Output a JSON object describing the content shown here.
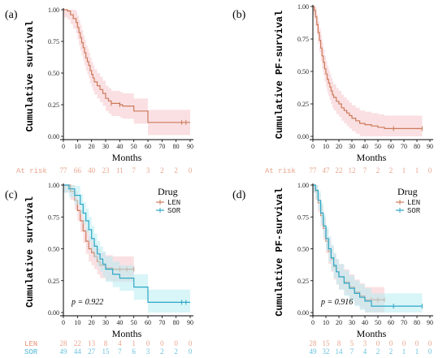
{
  "colors": {
    "len": "#cc7a5a",
    "sor": "#2ca7c6",
    "len_band": "#f6c6cc",
    "sor_band": "#b8ecf3",
    "risk_len": "#e8a58d",
    "risk_sor": "#6cc3dd"
  },
  "chart_data": [
    {
      "id": "a",
      "type": "line",
      "panel_label": "(a)",
      "xlabel": "Months",
      "ylabel": "Cumulative survival",
      "xlim": [
        0,
        90
      ],
      "ylim": [
        0,
        1
      ],
      "xticks": [
        "0",
        "10",
        "20",
        "30",
        "40",
        "50",
        "60",
        "70",
        "80",
        "90"
      ],
      "yticks": [
        "0.00",
        "0.25",
        "0.50",
        "0.75",
        "1.00"
      ],
      "series": [
        {
          "key": "len",
          "x": [
            0,
            3,
            5,
            7,
            9,
            10,
            11,
            12,
            13,
            14,
            15,
            16,
            17,
            18,
            19,
            20,
            21,
            22,
            24,
            26,
            28,
            30,
            32,
            34,
            40,
            42,
            50,
            60,
            90
          ],
          "y": [
            1,
            0.99,
            0.96,
            0.93,
            0.9,
            0.86,
            0.82,
            0.78,
            0.74,
            0.7,
            0.66,
            0.62,
            0.59,
            0.56,
            0.52,
            0.49,
            0.46,
            0.43,
            0.4,
            0.37,
            0.34,
            0.3,
            0.28,
            0.26,
            0.25,
            0.24,
            0.2,
            0.11,
            0.11
          ],
          "censor_x": [
            34,
            40,
            84,
            87
          ]
        }
      ],
      "at_risk": {
        "label": "At risk",
        "rows": [
          {
            "key": "len",
            "values": [
              "77",
              "66",
              "40",
              "23",
              "11",
              "7",
              "3",
              "2",
              "2",
              "0"
            ]
          }
        ]
      }
    },
    {
      "id": "b",
      "type": "line",
      "panel_label": "(b)",
      "xlabel": "Months",
      "ylabel": "Cumulative PF-survival",
      "xlim": [
        0,
        90
      ],
      "ylim": [
        0,
        1
      ],
      "xticks": [
        "0",
        "10",
        "20",
        "30",
        "40",
        "50",
        "60",
        "70",
        "80",
        "90"
      ],
      "yticks": [
        "0.00",
        "0.25",
        "0.50",
        "0.75",
        "1.00"
      ],
      "series": [
        {
          "key": "len",
          "x": [
            0,
            1,
            2,
            3,
            4,
            5,
            6,
            7,
            8,
            9,
            10,
            11,
            12,
            13,
            14,
            15,
            16,
            18,
            20,
            22,
            24,
            26,
            28,
            30,
            33,
            36,
            40,
            45,
            50,
            55,
            84
          ],
          "y": [
            1,
            0.97,
            0.92,
            0.86,
            0.8,
            0.74,
            0.68,
            0.62,
            0.57,
            0.52,
            0.48,
            0.44,
            0.41,
            0.38,
            0.35,
            0.32,
            0.3,
            0.27,
            0.25,
            0.22,
            0.2,
            0.18,
            0.16,
            0.14,
            0.12,
            0.1,
            0.09,
            0.08,
            0.07,
            0.06,
            0.06
          ],
          "censor_x": [
            62,
            84
          ]
        }
      ],
      "at_risk": {
        "label": "At risk",
        "rows": [
          {
            "key": "len",
            "values": [
              "77",
              "47",
              "22",
              "12",
              "7",
              "2",
              "2",
              "1",
              "1",
              "0"
            ]
          }
        ]
      }
    },
    {
      "id": "c",
      "type": "line",
      "panel_label": "(c)",
      "xlabel": "Months",
      "ylabel": "Cumulative survival",
      "xlim": [
        0,
        90
      ],
      "ylim": [
        0,
        1
      ],
      "xticks": [
        "0",
        "10",
        "20",
        "30",
        "40",
        "50",
        "60",
        "70",
        "80",
        "90"
      ],
      "yticks": [
        "0.00",
        "0.25",
        "0.50",
        "0.75",
        "1.00"
      ],
      "legend": {
        "title": "Drug",
        "position": "top-right"
      },
      "pvalue": "p = 0.922",
      "series": [
        {
          "key": "len",
          "name": "LEN",
          "x": [
            0,
            5,
            8,
            10,
            12,
            14,
            16,
            18,
            20,
            22,
            24,
            26,
            30,
            35,
            40,
            50
          ],
          "y": [
            1,
            0.95,
            0.88,
            0.8,
            0.72,
            0.64,
            0.56,
            0.5,
            0.47,
            0.44,
            0.4,
            0.37,
            0.35,
            0.34,
            0.34,
            0.34
          ],
          "censor_x": [
            40,
            45,
            50
          ]
        },
        {
          "key": "sor",
          "name": "SOR",
          "x": [
            0,
            4,
            8,
            12,
            14,
            16,
            18,
            20,
            22,
            24,
            26,
            28,
            30,
            35,
            40,
            50,
            60,
            90
          ],
          "y": [
            1,
            0.97,
            0.92,
            0.85,
            0.78,
            0.72,
            0.65,
            0.58,
            0.52,
            0.46,
            0.42,
            0.38,
            0.34,
            0.3,
            0.27,
            0.2,
            0.08,
            0.08
          ],
          "censor_x": [
            84,
            87
          ]
        }
      ],
      "at_risk": {
        "rows": [
          {
            "key": "len",
            "label": "LEN",
            "values": [
              "28",
              "22",
              "13",
              "8",
              "4",
              "1",
              "0",
              "0",
              "0",
              "0"
            ]
          },
          {
            "key": "sor",
            "label": "SOR",
            "values": [
              "49",
              "44",
              "27",
              "15",
              "7",
              "6",
              "3",
              "2",
              "2",
              "0"
            ]
          }
        ]
      }
    },
    {
      "id": "d",
      "type": "line",
      "panel_label": "(d)",
      "xlabel": "Months",
      "ylabel": "Cumulative PF-survival",
      "xlim": [
        0,
        90
      ],
      "ylim": [
        0,
        1
      ],
      "xticks": [
        "0",
        "10",
        "20",
        "30",
        "40",
        "50",
        "60",
        "70",
        "80",
        "90"
      ],
      "yticks": [
        "0.00",
        "0.25",
        "0.50",
        "0.75",
        "1.00"
      ],
      "legend": {
        "title": "Drug",
        "position": "top-right"
      },
      "pvalue": "p = 0.916",
      "series": [
        {
          "key": "len",
          "name": "LEN",
          "x": [
            0,
            2,
            4,
            6,
            8,
            10,
            12,
            14,
            16,
            18,
            20,
            24,
            28,
            32,
            36,
            40,
            45,
            55
          ],
          "y": [
            1,
            0.95,
            0.86,
            0.76,
            0.66,
            0.56,
            0.48,
            0.42,
            0.36,
            0.32,
            0.28,
            0.24,
            0.2,
            0.16,
            0.13,
            0.1,
            0.1,
            0.1
          ],
          "censor_x": [
            45,
            50,
            55
          ]
        },
        {
          "key": "sor",
          "name": "SOR",
          "x": [
            0,
            2,
            4,
            6,
            8,
            10,
            12,
            14,
            16,
            18,
            20,
            24,
            28,
            32,
            36,
            40,
            45,
            50,
            84
          ],
          "y": [
            1,
            0.96,
            0.88,
            0.78,
            0.68,
            0.58,
            0.5,
            0.43,
            0.37,
            0.32,
            0.28,
            0.23,
            0.19,
            0.15,
            0.12,
            0.09,
            0.05,
            0.05,
            0.05
          ],
          "censor_x": [
            62,
            84
          ]
        }
      ],
      "at_risk": {
        "rows": [
          {
            "key": "len",
            "label": "LEN",
            "values": [
              "28",
              "15",
              "8",
              "5",
              "3",
              "0",
              "0",
              "0",
              "0",
              "0"
            ]
          },
          {
            "key": "sor",
            "label": "SOR",
            "values": [
              "49",
              "32",
              "14",
              "7",
              "4",
              "2",
              "2",
              "1",
              "1",
              "0"
            ]
          }
        ]
      }
    }
  ]
}
